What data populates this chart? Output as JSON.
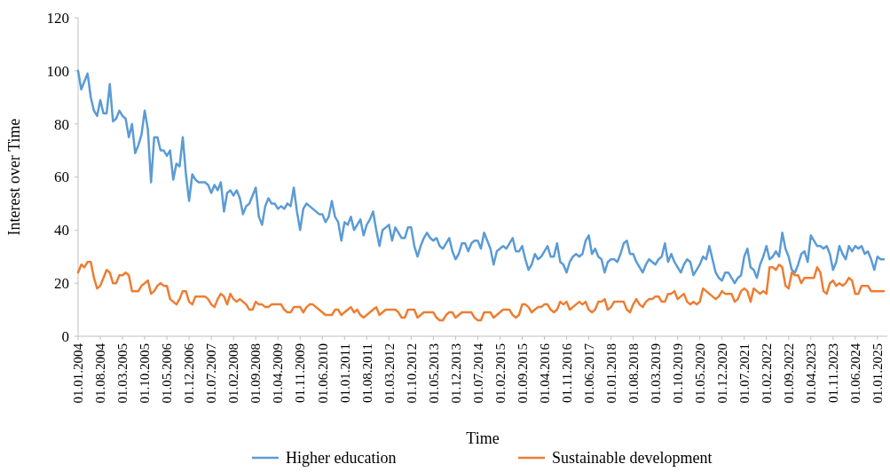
{
  "chart_data": {
    "type": "line",
    "xlabel": "Time",
    "ylabel": "Interest over Time",
    "ylim": [
      0,
      120
    ],
    "yticks": [
      0,
      20,
      40,
      60,
      80,
      100,
      120
    ],
    "grid": false,
    "legend": "bottom",
    "marker": "none",
    "line_style": "solid",
    "categories": [
      "01.01.2004",
      null,
      null,
      null,
      null,
      null,
      null,
      "01.08.2004",
      null,
      null,
      null,
      null,
      null,
      null,
      "01.03.2005",
      null,
      null,
      null,
      null,
      null,
      null,
      "01.10.2005",
      null,
      null,
      null,
      null,
      null,
      null,
      "01.05.2006",
      null,
      null,
      null,
      null,
      null,
      null,
      "01.12.2006",
      null,
      null,
      null,
      null,
      null,
      null,
      "01.07.2007",
      null,
      null,
      null,
      null,
      null,
      null,
      "01.02.2008",
      null,
      null,
      null,
      null,
      null,
      null,
      "01.09.2008",
      null,
      null,
      null,
      null,
      null,
      null,
      "01.04.2009",
      null,
      null,
      null,
      null,
      null,
      null,
      "01.11.2009",
      null,
      null,
      null,
      null,
      null,
      null,
      "01.06.2010",
      null,
      null,
      null,
      null,
      null,
      null,
      "01.01.2011",
      null,
      null,
      null,
      null,
      null,
      null,
      "01.08.2011",
      null,
      null,
      null,
      null,
      null,
      null,
      "01.03.2012",
      null,
      null,
      null,
      null,
      null,
      null,
      "01.10.2012",
      null,
      null,
      null,
      null,
      null,
      null,
      "01.05.2013",
      null,
      null,
      null,
      null,
      null,
      null,
      "01.12.2013",
      null,
      null,
      null,
      null,
      null,
      null,
      "01.07.2014",
      null,
      null,
      null,
      null,
      null,
      null,
      "01.02.2015",
      null,
      null,
      null,
      null,
      null,
      null,
      "01.09.2015",
      null,
      null,
      null,
      null,
      null,
      null,
      "01.04.2016",
      null,
      null,
      null,
      null,
      null,
      null,
      "01.11.2016",
      null,
      null,
      null,
      null,
      null,
      null,
      "01.06.2017",
      null,
      null,
      null,
      null,
      null,
      null,
      "01.01.2018",
      null,
      null,
      null,
      null,
      null,
      null,
      "01.08.2018",
      null,
      null,
      null,
      null,
      null,
      null,
      "01.03.2019",
      null,
      null,
      null,
      null,
      null,
      null,
      "01.10.2019",
      null,
      null,
      null,
      null,
      null,
      null,
      "01.05.2020",
      null,
      null,
      null,
      null,
      null,
      null,
      "01.12.2020",
      null,
      null,
      null,
      null,
      null,
      null,
      "01.07.2021",
      null,
      null,
      null,
      null,
      null,
      null,
      "01.02.2022",
      null,
      null,
      null,
      null,
      null,
      null,
      "01.09.2022",
      null,
      null,
      null,
      null,
      null,
      null,
      "01.04.2023",
      null,
      null,
      null,
      null,
      null,
      null,
      "01.11.2023",
      null,
      null,
      null,
      null,
      null,
      null,
      "01.06.2024",
      null,
      null,
      null,
      null,
      null,
      null,
      "01.01.2025",
      null,
      null
    ],
    "series": [
      {
        "name": "Higher education",
        "color": "#5b9bd5",
        "values": [
          100,
          93,
          96,
          99,
          90,
          85,
          83,
          89,
          84,
          84,
          95,
          81,
          82,
          85,
          83,
          82,
          75,
          80,
          69,
          72,
          76,
          85,
          78,
          58,
          75,
          75,
          70,
          70,
          68,
          70,
          59,
          65,
          64,
          75,
          61,
          51,
          61,
          59,
          58,
          58,
          58,
          57,
          54,
          57,
          55,
          58,
          47,
          54,
          55,
          53,
          55,
          52,
          46,
          49,
          50,
          53,
          56,
          45,
          42,
          49,
          52,
          50,
          50,
          48,
          49,
          48,
          50,
          49,
          56,
          47,
          40,
          48,
          50,
          49,
          48,
          47,
          46,
          46,
          43,
          45,
          51,
          45,
          43,
          36,
          43,
          42,
          45,
          40,
          42,
          44,
          38,
          42,
          44,
          47,
          40,
          34,
          40,
          41,
          42,
          36,
          41,
          39,
          37,
          37,
          41,
          41,
          34,
          30,
          34,
          37,
          39,
          37,
          36,
          37,
          34,
          33,
          35,
          37,
          32,
          29,
          31,
          35,
          35,
          32,
          35,
          36,
          36,
          33,
          39,
          36,
          33,
          27,
          32,
          33,
          34,
          33,
          35,
          37,
          32,
          32,
          34,
          29,
          25,
          27,
          31,
          29,
          30,
          32,
          34,
          30,
          30,
          35,
          28,
          27,
          24,
          28,
          30,
          31,
          30,
          31,
          36,
          38,
          31,
          33,
          30,
          29,
          24,
          28,
          29,
          29,
          28,
          31,
          35,
          36,
          31,
          31,
          28,
          26,
          24,
          27,
          29,
          28,
          27,
          29,
          30,
          35,
          28,
          31,
          28,
          26,
          24,
          27,
          29,
          28,
          23,
          25,
          27,
          30,
          29,
          34,
          29,
          24,
          22,
          21,
          24,
          24,
          22,
          20,
          22,
          23,
          30,
          33,
          26,
          25,
          22,
          27,
          30,
          34,
          29,
          30,
          32,
          30,
          39,
          33,
          30,
          25,
          24,
          27,
          31,
          32,
          28,
          38,
          36,
          34,
          34,
          33,
          34,
          31,
          25,
          28,
          34,
          31,
          29,
          34,
          32,
          34,
          33,
          34,
          31,
          32,
          29,
          25,
          30,
          29,
          29
        ]
      },
      {
        "name": "Sustainable development",
        "color": "#ed7d31",
        "values": [
          24,
          27,
          26,
          28,
          28,
          22,
          18,
          19,
          22,
          25,
          24,
          20,
          20,
          23,
          23,
          24,
          23,
          17,
          17,
          17,
          19,
          20,
          21,
          16,
          17,
          19,
          20,
          19,
          19,
          14,
          13,
          12,
          14,
          17,
          17,
          13,
          12,
          15,
          15,
          15,
          15,
          14,
          12,
          11,
          14,
          16,
          15,
          12,
          16,
          14,
          13,
          14,
          13,
          12,
          10,
          10,
          13,
          12,
          12,
          11,
          11,
          12,
          12,
          12,
          12,
          10,
          9,
          9,
          11,
          11,
          11,
          9,
          11,
          12,
          12,
          11,
          10,
          9,
          8,
          8,
          8,
          10,
          10,
          8,
          9,
          10,
          11,
          9,
          10,
          8,
          7,
          8,
          9,
          10,
          11,
          8,
          9,
          10,
          10,
          10,
          10,
          9,
          7,
          7,
          10,
          10,
          10,
          7,
          8,
          9,
          9,
          9,
          9,
          7,
          6,
          6,
          8,
          9,
          9,
          7,
          8,
          9,
          9,
          9,
          9,
          7,
          6,
          6,
          9,
          9,
          9,
          7,
          8,
          9,
          10,
          10,
          10,
          8,
          7,
          8,
          12,
          12,
          11,
          9,
          10,
          11,
          11,
          12,
          12,
          10,
          9,
          10,
          13,
          12,
          13,
          10,
          11,
          12,
          13,
          12,
          13,
          10,
          9,
          10,
          13,
          13,
          14,
          10,
          11,
          13,
          13,
          13,
          13,
          10,
          9,
          12,
          14,
          12,
          11,
          13,
          14,
          14,
          15,
          15,
          13,
          13,
          16,
          16,
          17,
          14,
          15,
          16,
          13,
          12,
          13,
          12,
          13,
          18,
          17,
          16,
          15,
          14,
          15,
          17,
          16,
          16,
          16,
          13,
          14,
          17,
          18,
          17,
          13,
          18,
          17,
          16,
          17,
          16,
          26,
          26,
          25,
          27,
          26,
          19,
          18,
          24,
          23,
          23,
          20,
          22,
          22,
          22,
          22,
          26,
          24,
          17,
          16,
          20,
          21,
          19,
          20,
          19,
          20,
          22,
          21,
          16,
          16,
          19,
          19,
          19,
          17,
          17,
          17,
          17,
          17
        ]
      }
    ]
  }
}
